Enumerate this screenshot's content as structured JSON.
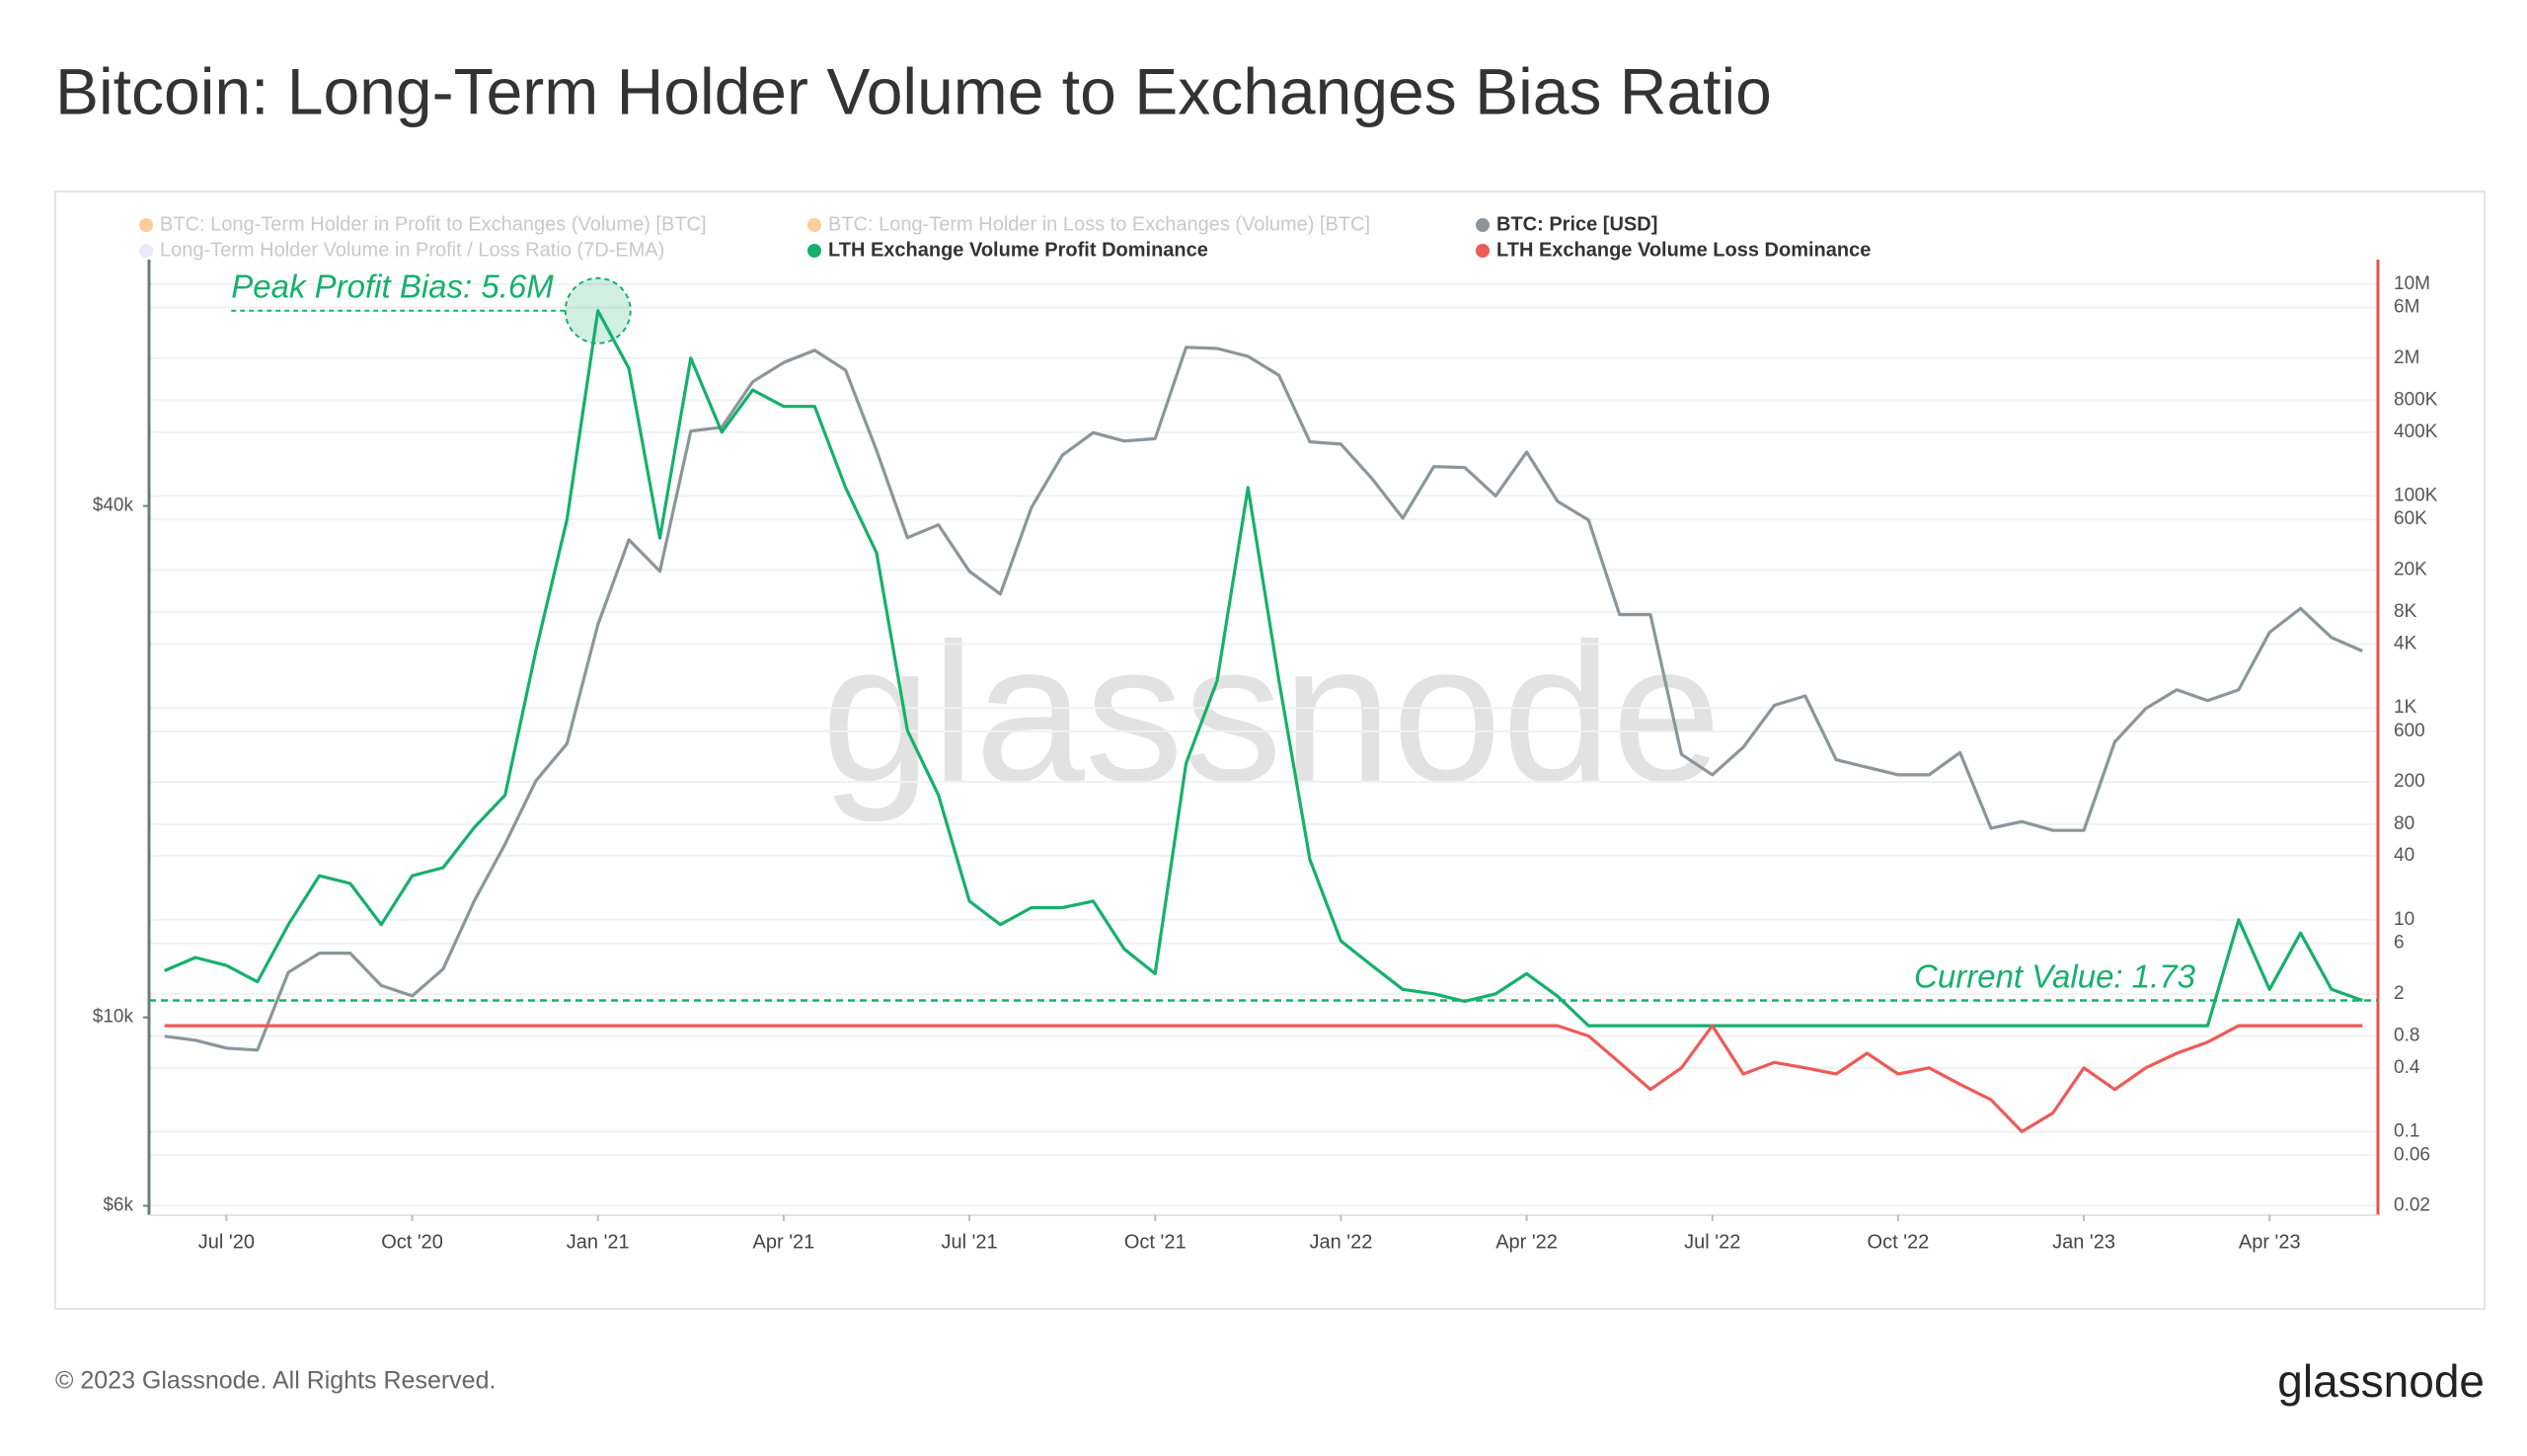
{
  "chart_data": {
    "type": "line",
    "title": "Bitcoin: Long-Term Holder Volume to Exchanges Bias Ratio",
    "watermark": "glassnode",
    "footer": "© 2023 Glassnode. All Rights Reserved.",
    "logo": "glassnode",
    "log_scale": true,
    "grid": true,
    "categories": [
      null,
      null,
      "Jul '20",
      null,
      null,
      null,
      null,
      null,
      "Oct '20",
      null,
      null,
      null,
      null,
      null,
      "Jan '21",
      null,
      null,
      null,
      null,
      null,
      "Apr '21",
      null,
      null,
      null,
      null,
      null,
      "Jul '21",
      null,
      null,
      null,
      null,
      null,
      "Oct '21",
      null,
      null,
      null,
      null,
      null,
      "Jan '22",
      null,
      null,
      null,
      null,
      null,
      "Apr '22",
      null,
      null,
      null,
      null,
      null,
      "Jul '22",
      null,
      null,
      null,
      null,
      null,
      "Oct '22",
      null,
      null,
      null,
      null,
      null,
      "Jan '23",
      null,
      null,
      null,
      null,
      null,
      "Apr '23",
      null,
      null,
      null
    ],
    "ylim": [
      5850,
      78000
    ],
    "yticks": [
      {
        "value": 6000,
        "label": "$6k"
      },
      {
        "value": 10000,
        "label": "$10k"
      },
      {
        "value": 40000,
        "label": "$40k"
      }
    ],
    "y2lim": [
      0.0163,
      17000000
    ],
    "y2ticks": [
      {
        "value": 10000000,
        "label": "10M"
      },
      {
        "value": 6000000,
        "label": "6M"
      },
      {
        "value": 2000000,
        "label": "2M"
      },
      {
        "value": 800000,
        "label": "800K"
      },
      {
        "value": 400000,
        "label": "400K"
      },
      {
        "value": 100000,
        "label": "100K"
      },
      {
        "value": 60000,
        "label": "60K"
      },
      {
        "value": 20000,
        "label": "20K"
      },
      {
        "value": 8000,
        "label": "8K"
      },
      {
        "value": 4000,
        "label": "4K"
      },
      {
        "value": 1000,
        "label": "1K"
      },
      600,
      200,
      80,
      40,
      10,
      6,
      2,
      0.8,
      0.4,
      0.1,
      0.06,
      0.02
    ],
    "series": [
      {
        "name": "BTC: Long-Term Holder in Profit to Exchanges (Volume) [BTC]",
        "color": "#f7931a",
        "hidden": true
      },
      {
        "name": "BTC: Long-Term Holder in Loss to Exchanges (Volume) [BTC]",
        "color": "#f7931a",
        "hidden": true
      },
      {
        "name": "BTC: Price [USD]",
        "color": "#8c969a",
        "values": [
          9500,
          9400,
          9200,
          9150,
          11300,
          11900,
          11900,
          10900,
          10600,
          11400,
          13700,
          16000,
          19000,
          21000,
          29000,
          36500,
          33500,
          49000,
          49500,
          56000,
          59000,
          61000,
          57800,
          46500,
          36700,
          38000,
          33500,
          31500,
          39800,
          45900,
          48800,
          47700,
          48000,
          61500,
          61300,
          60000,
          57000,
          47600,
          47300,
          43100,
          38700,
          44500,
          44400,
          41100,
          46300,
          40500,
          38500,
          29800,
          29800,
          20400,
          19300,
          20800,
          23300,
          23900,
          20100,
          19700,
          19300,
          19300,
          20500,
          16700,
          17000,
          16600,
          16600,
          21100,
          23100,
          24300,
          23600,
          24300,
          28400,
          30300,
          28000,
          27000
        ]
      },
      {
        "name": "Long-Term Holder Volume in Profit / Loss Ratio (7D-EMA)",
        "color": "#d8c8ef",
        "hidden": true
      },
      {
        "name": "LTH Exchange Volume Profit Dominance",
        "color": "#16b06c",
        "axis": "y2",
        "values": [
          3.3,
          4.4,
          3.7,
          2.6,
          9,
          26,
          22,
          9,
          26,
          31,
          74,
          150,
          3500,
          60000,
          5600000,
          1600000,
          40000,
          2000000,
          400000,
          1000000,
          700000,
          700000,
          120000,
          29000,
          610,
          150,
          15,
          9,
          13,
          13,
          15,
          5.3,
          3.1,
          300,
          1800,
          120000,
          1800,
          37,
          6.3,
          3.7,
          2.2,
          2,
          1.7,
          2,
          3.1,
          1.9,
          1,
          1,
          1,
          1,
          1,
          1,
          1,
          1,
          1,
          1,
          1,
          1,
          1,
          1,
          1,
          1,
          1,
          1,
          1,
          1,
          1,
          10,
          2.2,
          7.5,
          2.2,
          1.73
        ]
      },
      {
        "name": "LTH Exchange Volume Loss Dominance",
        "color": "#ee5a57",
        "axis": "y2",
        "values": [
          1,
          1,
          1,
          1,
          1,
          1,
          1,
          1,
          1,
          1,
          1,
          1,
          1,
          1,
          1,
          1,
          1,
          1,
          1,
          1,
          1,
          1,
          1,
          1,
          1,
          1,
          1,
          1,
          1,
          1,
          1,
          1,
          1,
          1,
          1,
          1,
          1,
          1,
          1,
          1,
          1,
          1,
          1,
          1,
          1,
          1,
          0.8,
          0.45,
          0.25,
          0.4,
          1,
          0.35,
          0.45,
          0.4,
          0.35,
          0.55,
          0.35,
          0.4,
          0.28,
          0.2,
          0.1,
          0.15,
          0.4,
          0.25,
          0.4,
          0.55,
          0.7,
          1,
          1,
          1,
          1,
          1
        ]
      }
    ],
    "annotations": [
      {
        "text": "Peak Profit Bias: 5.6M",
        "value": 5600000,
        "axis": "y2"
      },
      {
        "text": "Current Value: 1.73",
        "value": 1.73,
        "axis": "y2"
      }
    ]
  }
}
